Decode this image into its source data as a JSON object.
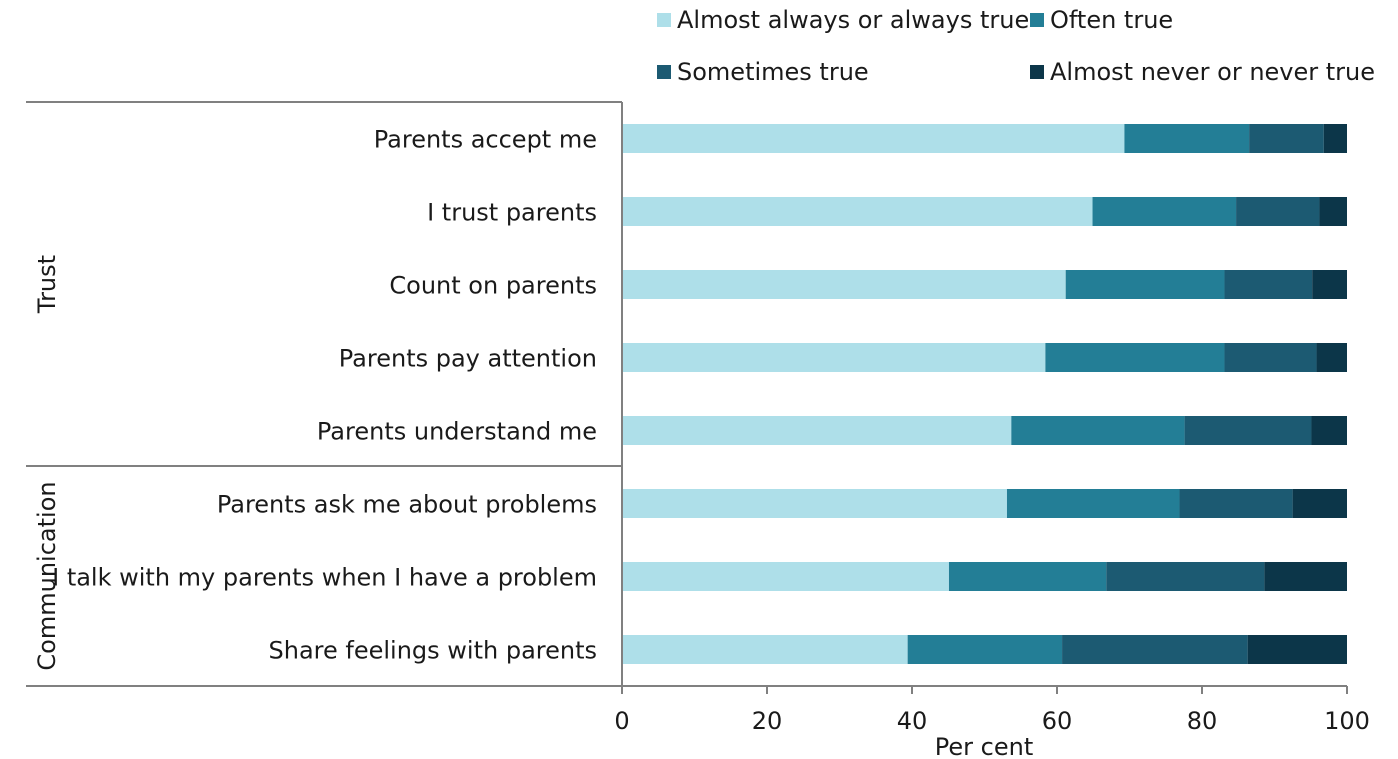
{
  "chart_data": {
    "type": "bar",
    "orientation": "horizontal",
    "stacked": true,
    "groups": [
      {
        "label": "Trust",
        "categories": [
          "Parents accept me",
          "I trust parents",
          "Count on parents",
          "Parents pay attention",
          "Parents understand me"
        ]
      },
      {
        "label": "Communication",
        "categories": [
          "Parents ask me about problems",
          "I talk with my parents when I have a problem",
          "Share feelings with parents"
        ]
      }
    ],
    "categories": [
      "Parents accept me",
      "I trust parents",
      "Count on parents",
      "Parents pay attention",
      "Parents understand me",
      "Parents ask me about problems",
      "I talk with my parents when I have a problem",
      "Share feelings with parents"
    ],
    "series": [
      {
        "name": "Almost always or always true",
        "color": "#aedfe9",
        "values": [
          69.3,
          64.9,
          61.2,
          58.4,
          53.7,
          53.1,
          45.1,
          39.4
        ]
      },
      {
        "name": "Often true",
        "color": "#237e96",
        "values": [
          17.2,
          19.8,
          21.9,
          24.7,
          23.9,
          23.8,
          21.7,
          21.3
        ]
      },
      {
        "name": "Sometimes true",
        "color": "#1c5a72",
        "values": [
          10.3,
          11.5,
          12.1,
          12.7,
          17.5,
          15.6,
          21.8,
          25.6
        ]
      },
      {
        "name": "Almost never or never true",
        "color": "#0c3649",
        "values": [
          3.2,
          3.8,
          4.8,
          4.2,
          4.9,
          7.5,
          11.4,
          13.7
        ]
      }
    ],
    "xlabel": "Per cent",
    "ylabel": "",
    "xlim": [
      0,
      100
    ],
    "xticks": [
      "0",
      "20",
      "40",
      "60",
      "80",
      "100"
    ],
    "grid": false,
    "legend_position": "top-right"
  }
}
